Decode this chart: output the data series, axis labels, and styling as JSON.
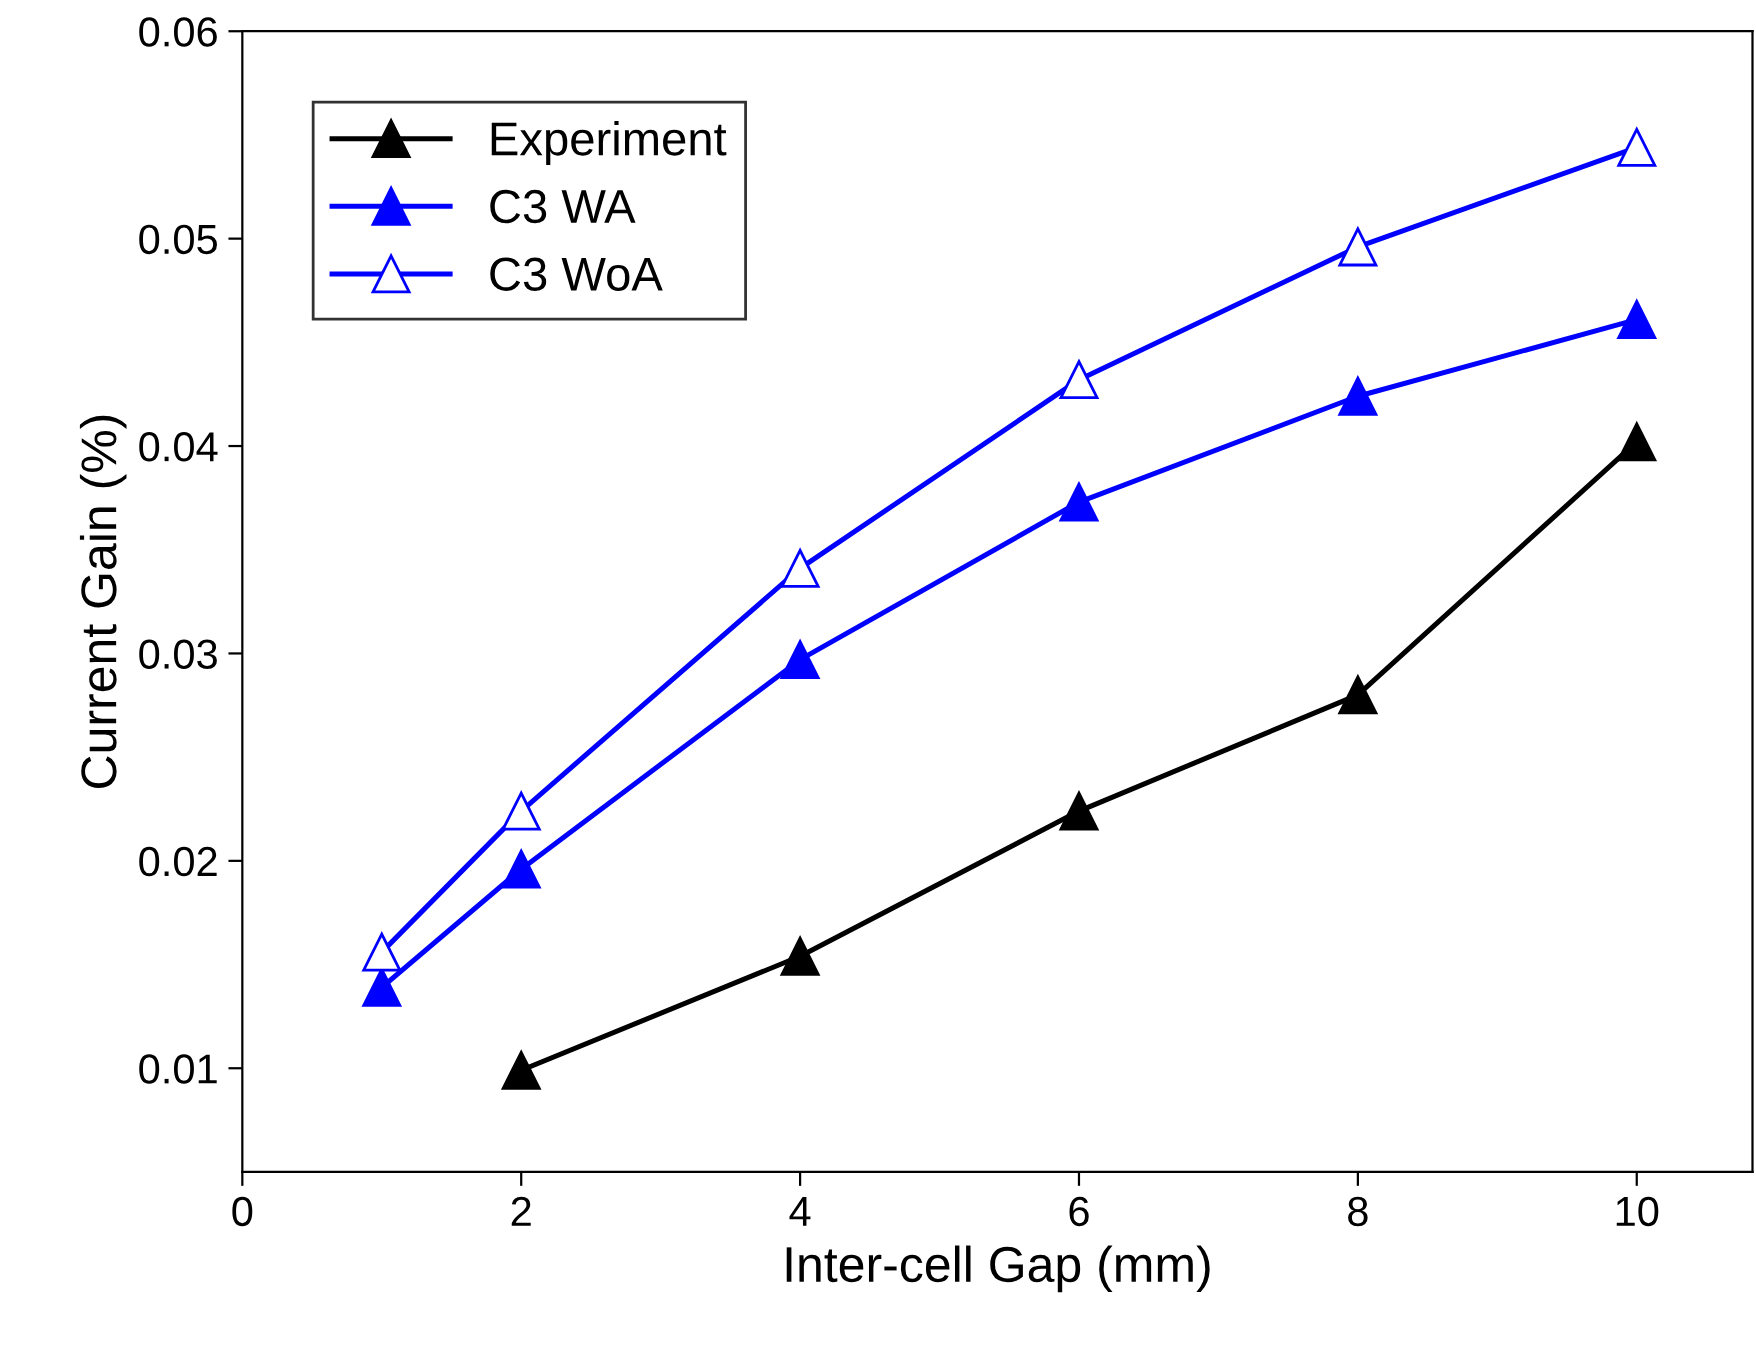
{
  "chart_data": {
    "type": "line",
    "xlabel": "Inter-cell Gap (mm)",
    "ylabel": "Current Gain (%)",
    "xlim": [
      0,
      10.83
    ],
    "xticks": [
      0,
      2,
      4,
      6,
      8,
      10
    ],
    "ylim": [
      0.005,
      0.06
    ],
    "yticks": [
      0.01,
      0.02,
      0.03,
      0.04,
      0.05,
      0.06
    ],
    "grid": false,
    "legend": "top left",
    "marker": "triangle",
    "line_style": "solid",
    "series": [
      {
        "name": "Experiment",
        "color": "#000000",
        "x": [
          2,
          4,
          6,
          8,
          10
        ],
        "values": [
          0.0099,
          0.0154,
          0.0224,
          0.028,
          0.0402
        ]
      },
      {
        "name": "C3 WA",
        "color": "#0000ff",
        "x": [
          1,
          2,
          4,
          6,
          8,
          10
        ],
        "values": [
          0.0139,
          0.0196,
          0.0297,
          0.0373,
          0.0424,
          0.0461
        ]
      },
      {
        "name": "C3 WoA",
        "color": "#0000ff",
        "x": [
          1,
          2,
          4,
          6,
          8,
          10
        ],
        "values": [
          0.0156,
          0.0224,
          0.0341,
          0.0432,
          0.0496,
          0.0544
        ]
      }
    ]
  }
}
